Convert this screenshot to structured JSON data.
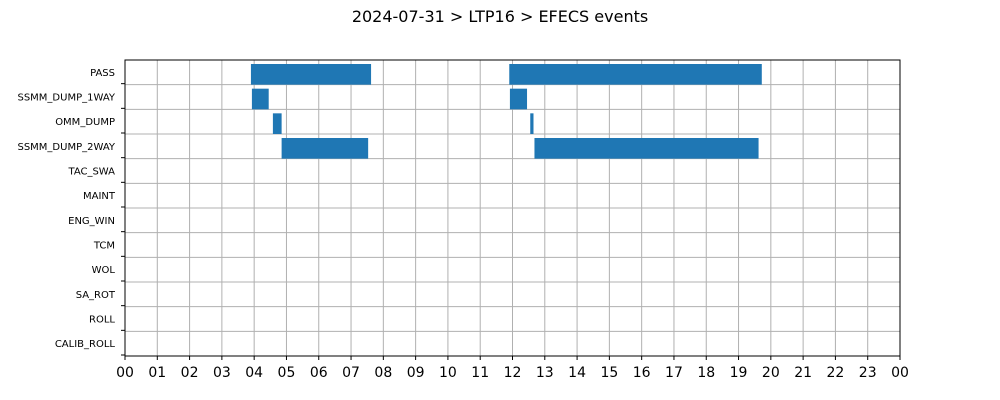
{
  "chart_data": {
    "type": "bar",
    "orientation": "horizontal-gantt",
    "title": "2024-07-31 > LTP16 > EFECS events",
    "xlabel": "",
    "ylabel": "",
    "x_unit": "hour of day",
    "xlim": [
      0,
      24
    ],
    "x_tick_values": [
      0,
      1,
      2,
      3,
      4,
      5,
      6,
      7,
      8,
      9,
      10,
      11,
      12,
      13,
      14,
      15,
      16,
      17,
      18,
      19,
      20,
      21,
      22,
      23,
      24
    ],
    "x_tick_labels": [
      "00",
      "01",
      "02",
      "03",
      "04",
      "05",
      "06",
      "07",
      "08",
      "09",
      "10",
      "11",
      "12",
      "13",
      "14",
      "15",
      "16",
      "17",
      "18",
      "19",
      "20",
      "21",
      "22",
      "23",
      "00"
    ],
    "categories": [
      "PASS",
      "SSMM_DUMP_1WAY",
      "OMM_DUMP",
      "SSMM_DUMP_2WAY",
      "TAC_SWA",
      "MAINT",
      "ENG_WIN",
      "TCM",
      "WOL",
      "SA_ROT",
      "ROLL",
      "CALIB_ROLL"
    ],
    "grid": true,
    "bar_color": "#1f77b4",
    "events": [
      {
        "category": "PASS",
        "start": 3.9,
        "end": 7.62
      },
      {
        "category": "PASS",
        "start": 11.9,
        "end": 19.72
      },
      {
        "category": "SSMM_DUMP_1WAY",
        "start": 3.93,
        "end": 4.45
      },
      {
        "category": "SSMM_DUMP_1WAY",
        "start": 11.92,
        "end": 12.45
      },
      {
        "category": "OMM_DUMP",
        "start": 4.58,
        "end": 4.85
      },
      {
        "category": "OMM_DUMP",
        "start": 12.55,
        "end": 12.65
      },
      {
        "category": "SSMM_DUMP_2WAY",
        "start": 4.85,
        "end": 7.53
      },
      {
        "category": "SSMM_DUMP_2WAY",
        "start": 12.68,
        "end": 19.62
      }
    ]
  }
}
